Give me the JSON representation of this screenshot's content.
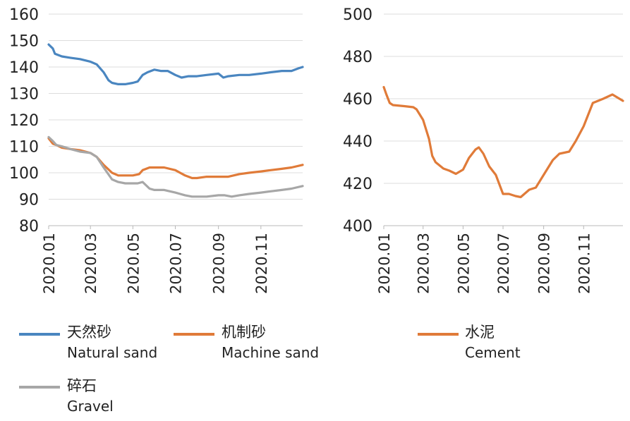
{
  "chart_data": [
    {
      "type": "line",
      "x_ticks": [
        "2020.01",
        "2020.03",
        "2020.05",
        "2020.07",
        "2020.09",
        "2020.11"
      ],
      "x_range": [
        "2020-01-01",
        "2020-12-31"
      ],
      "ylim": [
        80,
        160
      ],
      "y_ticks": [
        80,
        90,
        100,
        110,
        120,
        130,
        140,
        150,
        160
      ],
      "grid": true,
      "legend_position": "bottom",
      "series": [
        {
          "name": "天然砂",
          "name_en": "Natural sand",
          "color": "#4a86c0",
          "x": [
            "2020-01-01",
            "2020-01-07",
            "2020-01-10",
            "2020-01-20",
            "2020-02-01",
            "2020-02-15",
            "2020-03-01",
            "2020-03-10",
            "2020-03-20",
            "2020-03-27",
            "2020-04-01",
            "2020-04-10",
            "2020-04-20",
            "2020-05-01",
            "2020-05-08",
            "2020-05-15",
            "2020-05-22",
            "2020-06-01",
            "2020-06-10",
            "2020-06-20",
            "2020-07-01",
            "2020-07-10",
            "2020-07-20",
            "2020-08-01",
            "2020-08-15",
            "2020-09-01",
            "2020-09-08",
            "2020-09-15",
            "2020-10-01",
            "2020-10-15",
            "2020-11-01",
            "2020-11-15",
            "2020-12-01",
            "2020-12-15",
            "2020-12-25",
            "2020-12-31"
          ],
          "y": [
            148.5,
            147,
            145,
            144,
            143.5,
            143,
            142,
            141,
            138,
            135,
            134,
            133.5,
            133.5,
            134,
            134.5,
            137,
            138,
            139,
            138.5,
            138.5,
            137,
            136,
            136.5,
            136.5,
            137,
            137.5,
            136,
            136.5,
            137,
            137,
            137.5,
            138,
            138.5,
            138.5,
            139.5,
            140
          ]
        },
        {
          "name": "机制砂",
          "name_en": "Machine sand",
          "color": "#e07b39",
          "x": [
            "2020-01-01",
            "2020-01-07",
            "2020-01-12",
            "2020-01-20",
            "2020-02-01",
            "2020-02-15",
            "2020-03-01",
            "2020-03-10",
            "2020-03-20",
            "2020-04-01",
            "2020-04-10",
            "2020-04-20",
            "2020-05-01",
            "2020-05-10",
            "2020-05-15",
            "2020-05-25",
            "2020-06-01",
            "2020-06-15",
            "2020-07-01",
            "2020-07-15",
            "2020-07-25",
            "2020-08-01",
            "2020-08-15",
            "2020-09-01",
            "2020-09-15",
            "2020-10-01",
            "2020-10-15",
            "2020-11-01",
            "2020-11-15",
            "2020-12-01",
            "2020-12-15",
            "2020-12-31"
          ],
          "y": [
            113,
            111,
            110.5,
            109.5,
            109,
            108.5,
            107.5,
            106,
            103,
            100,
            99,
            99,
            99,
            99.5,
            101,
            102,
            102,
            102,
            101,
            99,
            98,
            98,
            98.5,
            98.5,
            98.5,
            99.5,
            100,
            100.5,
            101,
            101.5,
            102,
            103
          ]
        },
        {
          "name": "碎石",
          "name_en": "Gravel",
          "color": "#a7a7a7",
          "x": [
            "2020-01-01",
            "2020-01-07",
            "2020-01-12",
            "2020-01-20",
            "2020-02-01",
            "2020-02-15",
            "2020-03-01",
            "2020-03-10",
            "2020-03-20",
            "2020-04-01",
            "2020-04-10",
            "2020-04-20",
            "2020-05-01",
            "2020-05-08",
            "2020-05-15",
            "2020-05-25",
            "2020-06-01",
            "2020-06-15",
            "2020-07-01",
            "2020-07-15",
            "2020-07-25",
            "2020-08-01",
            "2020-08-15",
            "2020-09-01",
            "2020-09-10",
            "2020-09-20",
            "2020-10-01",
            "2020-10-15",
            "2020-11-01",
            "2020-11-15",
            "2020-12-01",
            "2020-12-15",
            "2020-12-31"
          ],
          "y": [
            113.5,
            112,
            110.5,
            110,
            109,
            108,
            107.5,
            106,
            102,
            97.5,
            96.5,
            96,
            96,
            96,
            96.5,
            94,
            93.5,
            93.5,
            92.5,
            91.5,
            91,
            91,
            91,
            91.5,
            91.5,
            91,
            91.5,
            92,
            92.5,
            93,
            93.5,
            94,
            95
          ]
        }
      ]
    },
    {
      "type": "line",
      "x_ticks": [
        "2020.01",
        "2020.03",
        "2020.05",
        "2020.07",
        "2020.09",
        "2020.11"
      ],
      "x_range": [
        "2020-01-01",
        "2020-12-31"
      ],
      "ylim": [
        400,
        500
      ],
      "y_ticks": [
        400,
        420,
        440,
        460,
        480,
        500
      ],
      "grid": true,
      "legend_position": "bottom",
      "series": [
        {
          "name": "水泥",
          "name_en": "Cement",
          "color": "#e07b39",
          "x": [
            "2020-01-01",
            "2020-01-05",
            "2020-01-10",
            "2020-01-15",
            "2020-02-01",
            "2020-02-15",
            "2020-02-20",
            "2020-03-01",
            "2020-03-10",
            "2020-03-15",
            "2020-03-20",
            "2020-04-01",
            "2020-04-10",
            "2020-04-20",
            "2020-05-01",
            "2020-05-10",
            "2020-05-20",
            "2020-05-25",
            "2020-06-01",
            "2020-06-10",
            "2020-06-20",
            "2020-07-01",
            "2020-07-10",
            "2020-07-20",
            "2020-07-28",
            "2020-08-10",
            "2020-08-20",
            "2020-09-01",
            "2020-09-15",
            "2020-09-25",
            "2020-10-10",
            "2020-10-20",
            "2020-11-01",
            "2020-11-15",
            "2020-12-01",
            "2020-12-15",
            "2020-12-31"
          ],
          "y": [
            465.5,
            462,
            458,
            457,
            456.5,
            456,
            455,
            450,
            441,
            433,
            430,
            427,
            426,
            424.5,
            426.5,
            432,
            436,
            437,
            434,
            428,
            424,
            415,
            415,
            414,
            413.5,
            417,
            418,
            424,
            431,
            434,
            435,
            440,
            447,
            458,
            460,
            462,
            459
          ]
        }
      ]
    }
  ]
}
